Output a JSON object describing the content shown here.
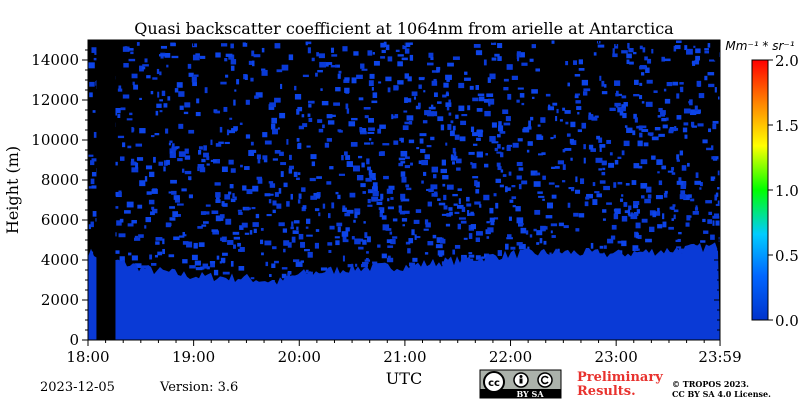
{
  "chart_data": {
    "type": "heatmap",
    "title": "Quasi backscatter coefficient at 1064nm from arielle at Antarctica",
    "xlabel": "UTC",
    "ylabel": "Height (m)",
    "x_ticks": [
      "18:00",
      "19:00",
      "20:00",
      "21:00",
      "22:00",
      "23:00",
      "23:59"
    ],
    "x_range_hours": [
      18.0,
      23.983
    ],
    "y_ticks": [
      0,
      2000,
      4000,
      6000,
      8000,
      10000,
      12000,
      14000
    ],
    "y_range": [
      0,
      15000
    ],
    "colorbar": {
      "unit_label": "Mm⁻¹ * sr⁻¹",
      "ticks": [
        "0.0",
        "0.5",
        "1.0",
        "1.5",
        "2.0"
      ],
      "range": [
        0,
        2.0
      ],
      "colors": [
        "#0033cc",
        "#0066ff",
        "#00ccff",
        "#00ff00",
        "#ffff00",
        "#ff8800",
        "#ff0000"
      ]
    },
    "no_data_intervals_hours": [
      [
        18.08,
        18.26
      ]
    ],
    "dense_layer_top_m": [
      {
        "t": 18.0,
        "h": 4400
      },
      {
        "t": 18.3,
        "h": 3900
      },
      {
        "t": 18.6,
        "h": 3500
      },
      {
        "t": 19.0,
        "h": 3200
      },
      {
        "t": 19.5,
        "h": 3100
      },
      {
        "t": 19.8,
        "h": 2900
      },
      {
        "t": 20.0,
        "h": 3300
      },
      {
        "t": 20.5,
        "h": 3600
      },
      {
        "t": 21.0,
        "h": 3700
      },
      {
        "t": 21.5,
        "h": 4000
      },
      {
        "t": 22.0,
        "h": 4300
      },
      {
        "t": 22.5,
        "h": 4400
      },
      {
        "t": 23.0,
        "h": 4300
      },
      {
        "t": 23.5,
        "h": 4500
      },
      {
        "t": 23.98,
        "h": 4700
      }
    ],
    "background_value": 0.05,
    "grid": false
  },
  "footer": {
    "date": "2023-12-05",
    "version": "Version: 3.6",
    "preliminary_line1": "Preliminary",
    "preliminary_line2": "Results.",
    "copyright_line1": "© TROPOS 2023.",
    "copyright_line2": "CC BY SA 4.0 License.",
    "license_badge_text": "BY  SA",
    "license_icon": "cc-by-sa-icon"
  }
}
